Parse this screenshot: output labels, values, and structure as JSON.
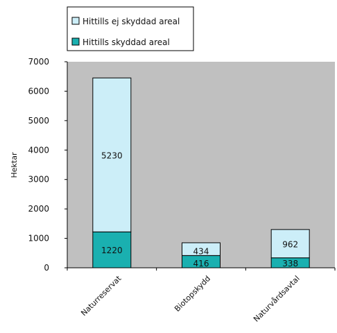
{
  "chart_data": {
    "type": "bar",
    "stacked": true,
    "categories": [
      "Naturreservat",
      "Biotopskydd",
      "Naturvårdsavtal"
    ],
    "series": [
      {
        "name": "Hittills skyddad areal",
        "values": [
          1220,
          416,
          338
        ],
        "color": "#1ab0b0"
      },
      {
        "name": "Hittills ej skyddad areal",
        "values": [
          5230,
          434,
          962
        ],
        "color": "#cceef8"
      }
    ],
    "ylabel": "Hektar",
    "xlabel": "",
    "ylim": [
      0,
      7000
    ],
    "yticks": [
      0,
      1000,
      2000,
      3000,
      4000,
      5000,
      6000,
      7000
    ],
    "grid": false,
    "plot_background": "#c0c0c0",
    "legend_position": "top-left",
    "legend_order": [
      1,
      0
    ]
  }
}
